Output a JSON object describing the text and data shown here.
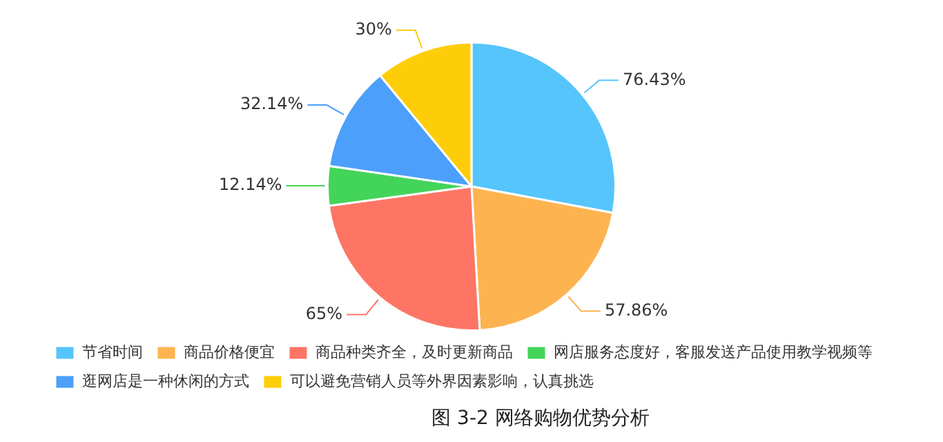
{
  "chart_data": {
    "type": "pie",
    "categories": [
      "节省时间",
      "商品价格便宜",
      "商品种类齐全，及时更新商品",
      "网店服务态度好，客服发送产品使用教学视频等",
      "逛网店是一种休闲的方式",
      "可以避免营销人员等外界因素影响，认真挑选"
    ],
    "values": [
      76.43,
      57.86,
      65,
      12.14,
      32.14,
      30
    ],
    "colors": [
      "#56c5fb",
      "#fdb450",
      "#fe7565",
      "#43d45a",
      "#4c9ffa",
      "#fecd0a"
    ],
    "value_labels": [
      "76.43%",
      "57.86%",
      "65%",
      "12.14%",
      "32.14%",
      "30%"
    ],
    "legend": "bottom",
    "annotations": [
      "图 3-2    网络购物优势分析"
    ]
  }
}
